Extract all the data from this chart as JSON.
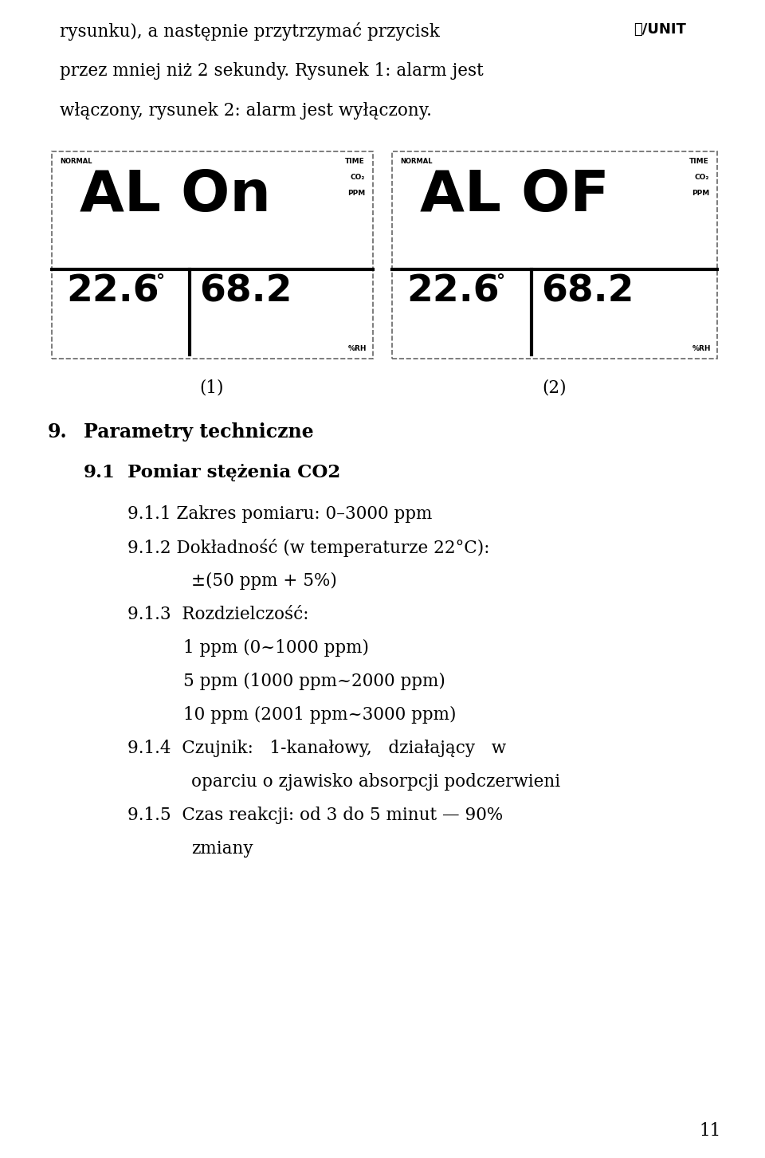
{
  "bg_color": "#ffffff",
  "text_color": "#000000",
  "page_number": "11",
  "line1": "rysunku), a następnie przytrzymać przycisk Ⓣ/UNIT",
  "line2": "przez mniej niż 2 sekundy. Rysunek 1: alarm jest",
  "line3": "włączony, rysunek 2: alarm jest wyłączony.",
  "display1_big": "AL On",
  "display2_big": "AL OF",
  "caption1": "(1)",
  "caption2": "(2)",
  "sec9_num": "9.",
  "sec9_title": "Parametry techniczne",
  "sub91_num": "9.1",
  "sub91_title": "Pomiar stężenia CO2",
  "item911": "9.1.1 Zakres pomiaru: 0–3000 ppm",
  "item912a": "9.1.2 Dokładność (w temperaturze 22°C):",
  "item912b": "±(50 ppm + 5%)",
  "item913a": "9.1.3  Rozdzielczość:",
  "item913b": "1 ppm (0~1000 ppm)",
  "item913c": "5 ppm (1000 ppm~2000 ppm)",
  "item913d": "10 ppm (2001 ppm~3000 ppm)",
  "item914a": "9.1.4  Czujnik:   1-kanałowy,   działający   w",
  "item914b": "oparciu o zjawisko absorpcji podczerwieni",
  "item915a": "9.1.5  Czas reakcji: od 3 do 5 minut — 90%",
  "item915b": "zmiany"
}
